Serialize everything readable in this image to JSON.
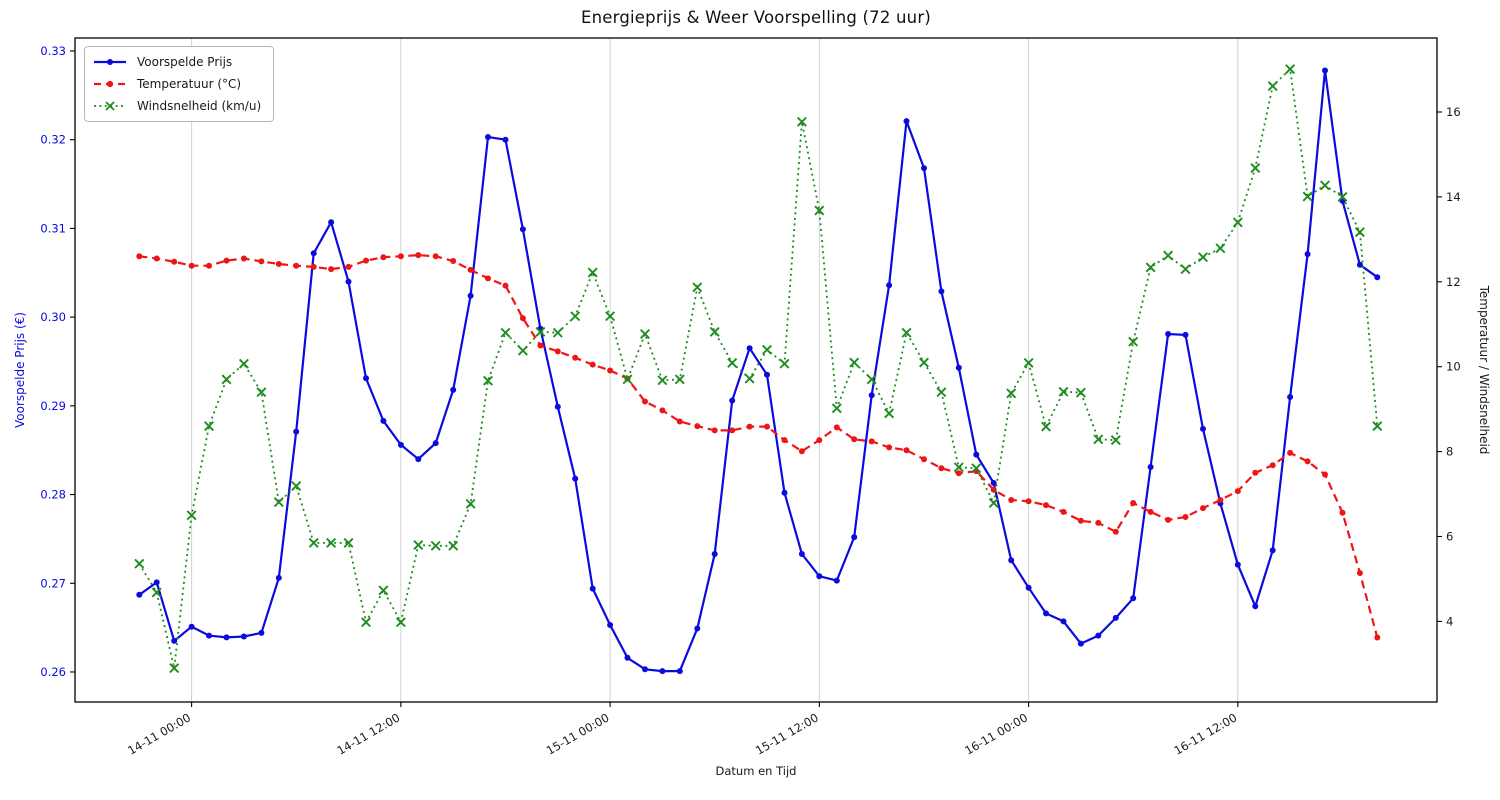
{
  "title": "Energieprijs & Weer Voorspelling (72 uur)",
  "axes": {
    "x_label": "Datum en Tijd",
    "y_left_label": "Voorspelde Prijs (€)",
    "y_right_label": "Temperatuur / Windsnelheid",
    "y_left_tick_labels": [
      "0.26",
      "0.27",
      "0.28",
      "0.29",
      "0.30",
      "0.31",
      "0.32",
      "0.33"
    ],
    "y_right_tick_labels": [
      "4",
      "6",
      "8",
      "10",
      "12",
      "14",
      "16"
    ],
    "x_tick_labels": [
      "14-11 00:00",
      "14-11 12:00",
      "15-11 00:00",
      "15-11 12:00",
      "16-11 00:00",
      "16-11 12:00"
    ]
  },
  "legend": {
    "items": [
      {
        "label": "Voorspelde Prijs",
        "color": "#0b0bdf",
        "line": "solid",
        "marker": "circle"
      },
      {
        "label": "Temperatuur (°C)",
        "color": "#f01515",
        "line": "dashed",
        "marker": "circle"
      },
      {
        "label": "Windsnelheid (km/u)",
        "color": "#1e8c1e",
        "line": "dotted",
        "marker": "x"
      }
    ]
  },
  "colors": {
    "price": "#0b0bdf",
    "temperature": "#f01515",
    "wind": "#1e8c1e",
    "grid": "#b3b3b3",
    "spine": "#000000",
    "left_axis_text": "#0b0bdf",
    "right_axis_text": "#1a1a1a"
  },
  "chart_data": {
    "type": "line",
    "title": "Energieprijs & Weer Voorspelling (72 uur)",
    "xlabel": "Datum en Tijd",
    "ylabel_left": "Voorspelde Prijs (€)",
    "ylabel_right": "Temperatuur / Windsnelheid",
    "x_points": 72,
    "x_step_hours": 1,
    "x_tick_positions": [
      3,
      15,
      27,
      39,
      51,
      63
    ],
    "x_tick_labels": [
      "14-11 00:00",
      "14-11 12:00",
      "15-11 00:00",
      "15-11 12:00",
      "16-11 00:00",
      "16-11 12:00"
    ],
    "y_left_ticks": [
      0.26,
      0.27,
      0.28,
      0.29,
      0.3,
      0.31,
      0.32,
      0.33
    ],
    "y_left_range": [
      0.2565,
      0.3315
    ],
    "y_right_ticks": [
      4,
      6,
      8,
      10,
      12,
      14,
      16
    ],
    "y_right_range": [
      2.58,
      17.75
    ],
    "grid": "vertical-only",
    "legend_position": "upper-left",
    "series": [
      {
        "name": "Voorspelde Prijs",
        "axis": "left",
        "style": {
          "line": "solid",
          "marker": "circle"
        },
        "values": [
          0.2687,
          0.2701,
          0.2635,
          0.2651,
          0.2641,
          0.2639,
          0.264,
          0.2644,
          0.2706,
          0.2871,
          0.3072,
          0.3107,
          0.304,
          0.2931,
          0.2883,
          0.2856,
          0.284,
          0.2858,
          0.2918,
          0.3024,
          0.3203,
          0.32,
          0.3099,
          0.2987,
          0.2899,
          0.2818,
          0.2694,
          0.2653,
          0.2616,
          0.2603,
          0.2601,
          0.2601,
          0.2649,
          0.2733,
          0.2906,
          0.2965,
          0.2935,
          0.2802,
          0.2733,
          0.2708,
          0.2703,
          0.2752,
          0.2912,
          0.3036,
          0.3221,
          0.3168,
          0.3029,
          0.2943,
          0.2845,
          0.2813,
          0.2726,
          0.2695,
          0.2666,
          0.2657,
          0.2632,
          0.2641,
          0.2661,
          0.2683,
          0.2831,
          0.2981,
          0.298,
          0.2874,
          0.279,
          0.2721,
          0.2674,
          0.2737,
          0.291,
          0.3071,
          0.3278,
          0.3131,
          0.3059,
          0.3045
        ]
      },
      {
        "name": "Temperatuur (°C)",
        "axis": "right",
        "style": {
          "line": "dashed",
          "marker": "circle"
        },
        "values": [
          12.6,
          12.55,
          12.47,
          12.38,
          12.38,
          12.5,
          12.55,
          12.48,
          12.42,
          12.38,
          12.35,
          12.3,
          12.35,
          12.5,
          12.58,
          12.6,
          12.63,
          12.6,
          12.49,
          12.28,
          12.08,
          11.91,
          11.14,
          10.5,
          10.36,
          10.21,
          10.05,
          9.91,
          9.72,
          9.18,
          8.97,
          8.71,
          8.6,
          8.5,
          8.5,
          8.59,
          8.59,
          8.27,
          8.01,
          8.27,
          8.57,
          8.29,
          8.24,
          8.1,
          8.03,
          7.82,
          7.61,
          7.49,
          7.54,
          7.1,
          6.86,
          6.83,
          6.74,
          6.58,
          6.37,
          6.32,
          6.11,
          6.79,
          6.58,
          6.39,
          6.46,
          6.67,
          6.86,
          7.07,
          7.5,
          7.68,
          7.97,
          7.77,
          7.46,
          6.56,
          5.14,
          3.62
        ]
      },
      {
        "name": "Windsnelheid (km/u)",
        "axis": "right",
        "style": {
          "line": "dotted",
          "marker": "x"
        },
        "values": [
          5.36,
          4.68,
          2.9,
          6.5,
          8.6,
          9.7,
          10.07,
          9.4,
          6.81,
          7.19,
          5.85,
          5.85,
          5.85,
          3.98,
          4.73,
          3.98,
          5.8,
          5.78,
          5.78,
          6.77,
          9.67,
          10.8,
          10.38,
          10.82,
          10.8,
          11.19,
          12.22,
          11.19,
          9.7,
          10.77,
          9.68,
          9.7,
          11.87,
          10.82,
          10.09,
          9.72,
          10.4,
          10.07,
          15.77,
          13.68,
          9.02,
          10.1,
          9.7,
          8.9,
          10.8,
          10.1,
          9.4,
          7.63,
          7.61,
          6.79,
          9.37,
          10.09,
          8.59,
          9.41,
          9.39,
          8.29,
          8.27,
          10.59,
          12.34,
          12.62,
          12.3,
          12.58,
          12.79,
          13.4,
          14.68,
          16.61,
          17.01,
          14.01,
          14.27,
          14.0,
          13.17,
          8.6
        ]
      }
    ]
  }
}
